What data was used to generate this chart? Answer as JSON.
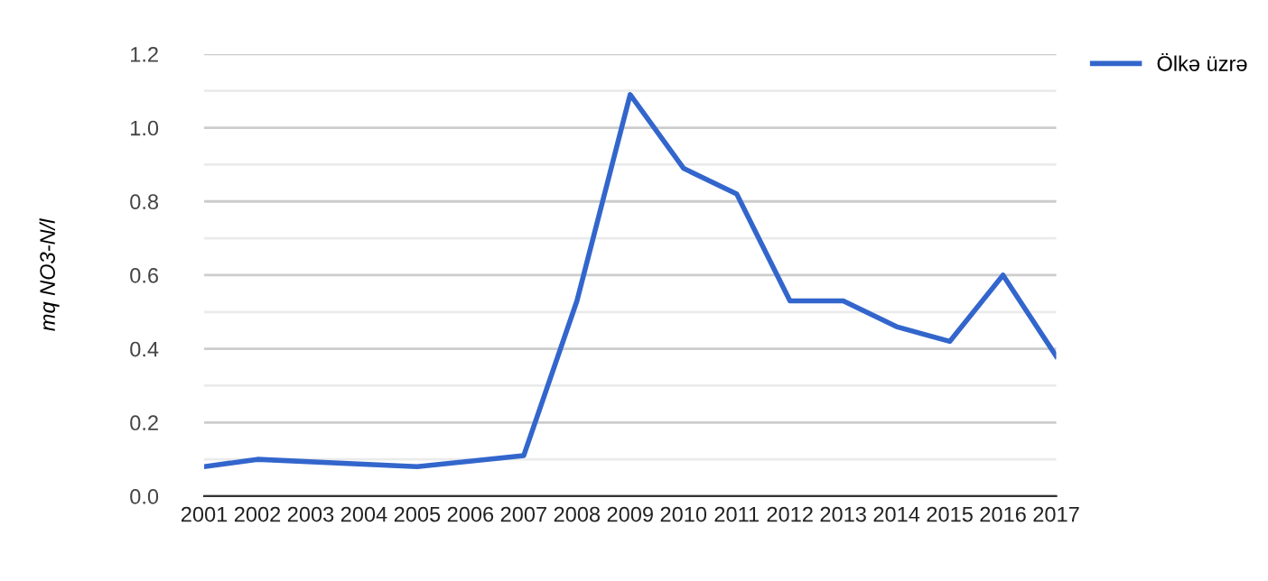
{
  "chart_data": {
    "type": "line",
    "ylabel": "mq NO3-N/l",
    "x": [
      2001,
      2002,
      2005,
      2007,
      2008,
      2009,
      2010,
      2011,
      2012,
      2013,
      2014,
      2015,
      2016,
      2017
    ],
    "series": [
      {
        "name": "Ölkə üzrə",
        "color": "#3366cc",
        "values": [
          0.08,
          0.1,
          0.08,
          0.11,
          0.53,
          1.09,
          0.89,
          0.82,
          0.53,
          0.53,
          0.46,
          0.42,
          0.6,
          0.38
        ]
      }
    ],
    "xlim": [
      2001,
      2017
    ],
    "xticks": [
      2001,
      2002,
      2003,
      2004,
      2005,
      2006,
      2007,
      2008,
      2009,
      2010,
      2011,
      2012,
      2013,
      2014,
      2015,
      2016,
      2017
    ],
    "ylim": [
      0,
      1.2
    ],
    "yticks": [
      {
        "value": 0,
        "label": "0.0"
      },
      {
        "value": 0.1,
        "label": null
      },
      {
        "value": 0.2,
        "label": "0.2"
      },
      {
        "value": 0.3,
        "label": null
      },
      {
        "value": 0.4,
        "label": "0.4"
      },
      {
        "value": 0.5,
        "label": null
      },
      {
        "value": 0.6,
        "label": "0.6"
      },
      {
        "value": 0.7,
        "label": null
      },
      {
        "value": 0.8,
        "label": "0.8"
      },
      {
        "value": 0.9,
        "label": null
      },
      {
        "value": 1.0,
        "label": "1.0"
      },
      {
        "value": 1.1,
        "label": null
      },
      {
        "value": 1.2,
        "label": "1.2"
      }
    ],
    "grid": "y",
    "legend": "top right",
    "marker": "none",
    "line_style": "solid"
  }
}
